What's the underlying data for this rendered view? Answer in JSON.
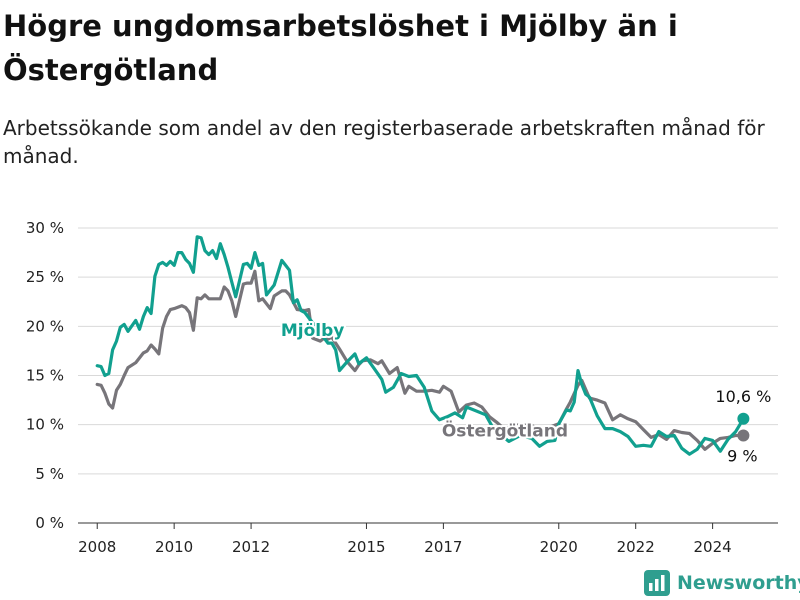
{
  "header": {
    "title": "Högre ungdomsarbetslöshet i Mjölby än i Östergötland",
    "subtitle": "Arbetssökande som andel av den registerbaserade arbetskraften månad för månad."
  },
  "brand": {
    "name": "Newsworthy",
    "icon": "bar-chart-logo-icon",
    "color": "#2f9e8f"
  },
  "chart_data": {
    "type": "line",
    "xlabel": "",
    "ylabel": "",
    "ylim": [
      0,
      30
    ],
    "xlim": [
      2007.5,
      2025.7
    ],
    "y_ticks": [
      0,
      5,
      10,
      15,
      20,
      25,
      30
    ],
    "y_tick_labels": [
      "0 %",
      "5 %",
      "10 %",
      "15 %",
      "20 %",
      "25 %",
      "30 %"
    ],
    "x_ticks": [
      2008,
      2010,
      2012,
      2015,
      2017,
      2020,
      2022,
      2024
    ],
    "x_tick_labels": [
      "2008",
      "2010",
      "2012",
      "2015",
      "2017",
      "2020",
      "2022",
      "2024"
    ],
    "grid": true,
    "series": [
      {
        "name": "Östergötland",
        "color": "#77757a",
        "last_label": "9 %",
        "x": [
          2008.0,
          2008.1,
          2008.2,
          2008.3,
          2008.4,
          2008.5,
          2008.6,
          2008.7,
          2008.8,
          2009.0,
          2009.2,
          2009.3,
          2009.4,
          2009.5,
          2009.6,
          2009.7,
          2009.8,
          2009.9,
          2010.0,
          2010.2,
          2010.3,
          2010.4,
          2010.5,
          2010.6,
          2010.7,
          2010.8,
          2010.9,
          2011.0,
          2011.2,
          2011.3,
          2011.4,
          2011.5,
          2011.6,
          2011.8,
          2011.9,
          2012.0,
          2012.1,
          2012.2,
          2012.3,
          2012.5,
          2012.6,
          2012.8,
          2012.9,
          2013.0,
          2013.2,
          2013.4,
          2013.5,
          2013.6,
          2013.8,
          2013.9,
          2014.0,
          2014.1,
          2014.3,
          2014.5,
          2014.7,
          2014.8,
          2014.9,
          2015.1,
          2015.3,
          2015.4,
          2015.6,
          2015.8,
          2016.0,
          2016.1,
          2016.3,
          2016.5,
          2016.7,
          2016.9,
          2017.0,
          2017.2,
          2017.4,
          2017.6,
          2017.8,
          2018.0,
          2018.2,
          2018.4,
          2018.6,
          2018.8,
          2019.0,
          2019.3,
          2019.6,
          2019.8,
          2020.0,
          2020.2,
          2020.3,
          2020.5,
          2020.6,
          2020.8,
          2021.0,
          2021.2,
          2021.4,
          2021.6,
          2021.8,
          2022.0,
          2022.2,
          2022.4,
          2022.6,
          2022.8,
          2023.0,
          2023.2,
          2023.4,
          2023.6,
          2023.8,
          2024.0,
          2024.2,
          2024.4,
          2024.6,
          2024.8
        ],
        "y": [
          14.1,
          14.0,
          13.2,
          12.1,
          11.7,
          13.5,
          14.1,
          15.0,
          15.8,
          16.3,
          17.3,
          17.5,
          18.1,
          17.7,
          17.2,
          19.8,
          21.0,
          21.7,
          21.8,
          22.1,
          21.9,
          21.4,
          19.6,
          22.9,
          22.8,
          23.2,
          22.8,
          22.8,
          22.8,
          24.0,
          23.6,
          22.6,
          21.0,
          24.3,
          24.4,
          24.4,
          25.6,
          22.6,
          22.8,
          21.8,
          23.1,
          23.6,
          23.6,
          23.2,
          21.7,
          21.6,
          21.7,
          18.8,
          18.5,
          18.8,
          18.7,
          18.9,
          17.7,
          16.4,
          15.5,
          16.1,
          16.5,
          16.6,
          16.2,
          16.5,
          15.2,
          15.8,
          13.2,
          13.9,
          13.4,
          13.4,
          13.5,
          13.3,
          13.9,
          13.4,
          11.3,
          12.0,
          12.2,
          11.8,
          10.8,
          10.2,
          9.5,
          9.9,
          10.0,
          9.9,
          9.3,
          9.8,
          10.1,
          11.6,
          12.3,
          14.0,
          14.5,
          12.7,
          12.5,
          12.2,
          10.5,
          11.0,
          10.6,
          10.3,
          9.5,
          8.7,
          9.0,
          8.5,
          9.4,
          9.2,
          9.1,
          8.4,
          7.5,
          8.1,
          8.6,
          8.7,
          8.9,
          8.9
        ]
      },
      {
        "name": "Mjölby",
        "color": "#11a08f",
        "last_label": "10,6 %",
        "x": [
          2008.0,
          2008.1,
          2008.2,
          2008.3,
          2008.4,
          2008.5,
          2008.6,
          2008.7,
          2008.8,
          2009.0,
          2009.1,
          2009.2,
          2009.3,
          2009.4,
          2009.5,
          2009.6,
          2009.7,
          2009.8,
          2009.9,
          2010.0,
          2010.1,
          2010.2,
          2010.3,
          2010.4,
          2010.5,
          2010.6,
          2010.7,
          2010.8,
          2010.9,
          2011.0,
          2011.1,
          2011.2,
          2011.3,
          2011.4,
          2011.5,
          2011.6,
          2011.8,
          2011.9,
          2012.0,
          2012.1,
          2012.2,
          2012.3,
          2012.4,
          2012.6,
          2012.8,
          2012.9,
          2013.0,
          2013.1,
          2013.2,
          2013.3,
          2013.4,
          2014.0,
          2014.1,
          2014.2,
          2014.3,
          2014.5,
          2014.6,
          2014.7,
          2014.8,
          2015.0,
          2015.2,
          2015.4,
          2015.5,
          2015.7,
          2015.9,
          2016.1,
          2016.3,
          2016.5,
          2016.7,
          2016.9,
          2017.1,
          2017.3,
          2017.5,
          2017.6,
          2018.1,
          2018.3,
          2018.7,
          2019.0,
          2019.3,
          2019.5,
          2019.7,
          2019.9,
          2020.0,
          2020.2,
          2020.3,
          2020.4,
          2020.5,
          2020.6,
          2020.7,
          2020.8,
          2021.0,
          2021.2,
          2021.4,
          2021.6,
          2021.8,
          2022.0,
          2022.2,
          2022.4,
          2022.6,
          2022.8,
          2023.0,
          2023.2,
          2023.4,
          2023.6,
          2023.8,
          2024.0,
          2024.2,
          2024.4,
          2024.6,
          2024.8
        ],
        "y": [
          16.0,
          15.9,
          15.0,
          15.2,
          17.6,
          18.5,
          19.9,
          20.2,
          19.5,
          20.6,
          19.7,
          21.0,
          21.9,
          21.3,
          25.1,
          26.3,
          26.5,
          26.2,
          26.6,
          26.2,
          27.5,
          27.5,
          26.8,
          26.4,
          25.5,
          29.1,
          29.0,
          27.7,
          27.3,
          27.7,
          26.9,
          28.4,
          27.3,
          26.0,
          24.5,
          23.0,
          26.3,
          26.4,
          25.9,
          27.5,
          26.2,
          26.4,
          23.2,
          24.2,
          26.7,
          26.2,
          25.7,
          22.4,
          22.7,
          21.6,
          21.4,
          18.3,
          18.3,
          17.6,
          15.5,
          16.4,
          16.8,
          17.2,
          16.2,
          16.8,
          15.7,
          14.6,
          13.3,
          13.8,
          15.2,
          14.9,
          15.0,
          13.8,
          11.4,
          10.5,
          10.8,
          11.2,
          10.7,
          11.8,
          11.0,
          9.6,
          8.3,
          8.9,
          8.6,
          7.8,
          8.3,
          8.4,
          10.1,
          11.5,
          11.4,
          12.3,
          15.5,
          14.1,
          13.1,
          12.8,
          10.9,
          9.6,
          9.6,
          9.3,
          8.8,
          7.8,
          7.9,
          7.8,
          9.3,
          8.8,
          8.9,
          7.6,
          7.0,
          7.5,
          8.6,
          8.4,
          7.3,
          8.5,
          9.3,
          10.6
        ]
      }
    ],
    "annotations": [
      {
        "text": "Mjölby",
        "series": "Mjölby",
        "x": 2013.6,
        "y": 19.0
      },
      {
        "text": "Östergötland",
        "series": "Östergötland",
        "x": 2018.6,
        "y": 8.8
      }
    ]
  }
}
